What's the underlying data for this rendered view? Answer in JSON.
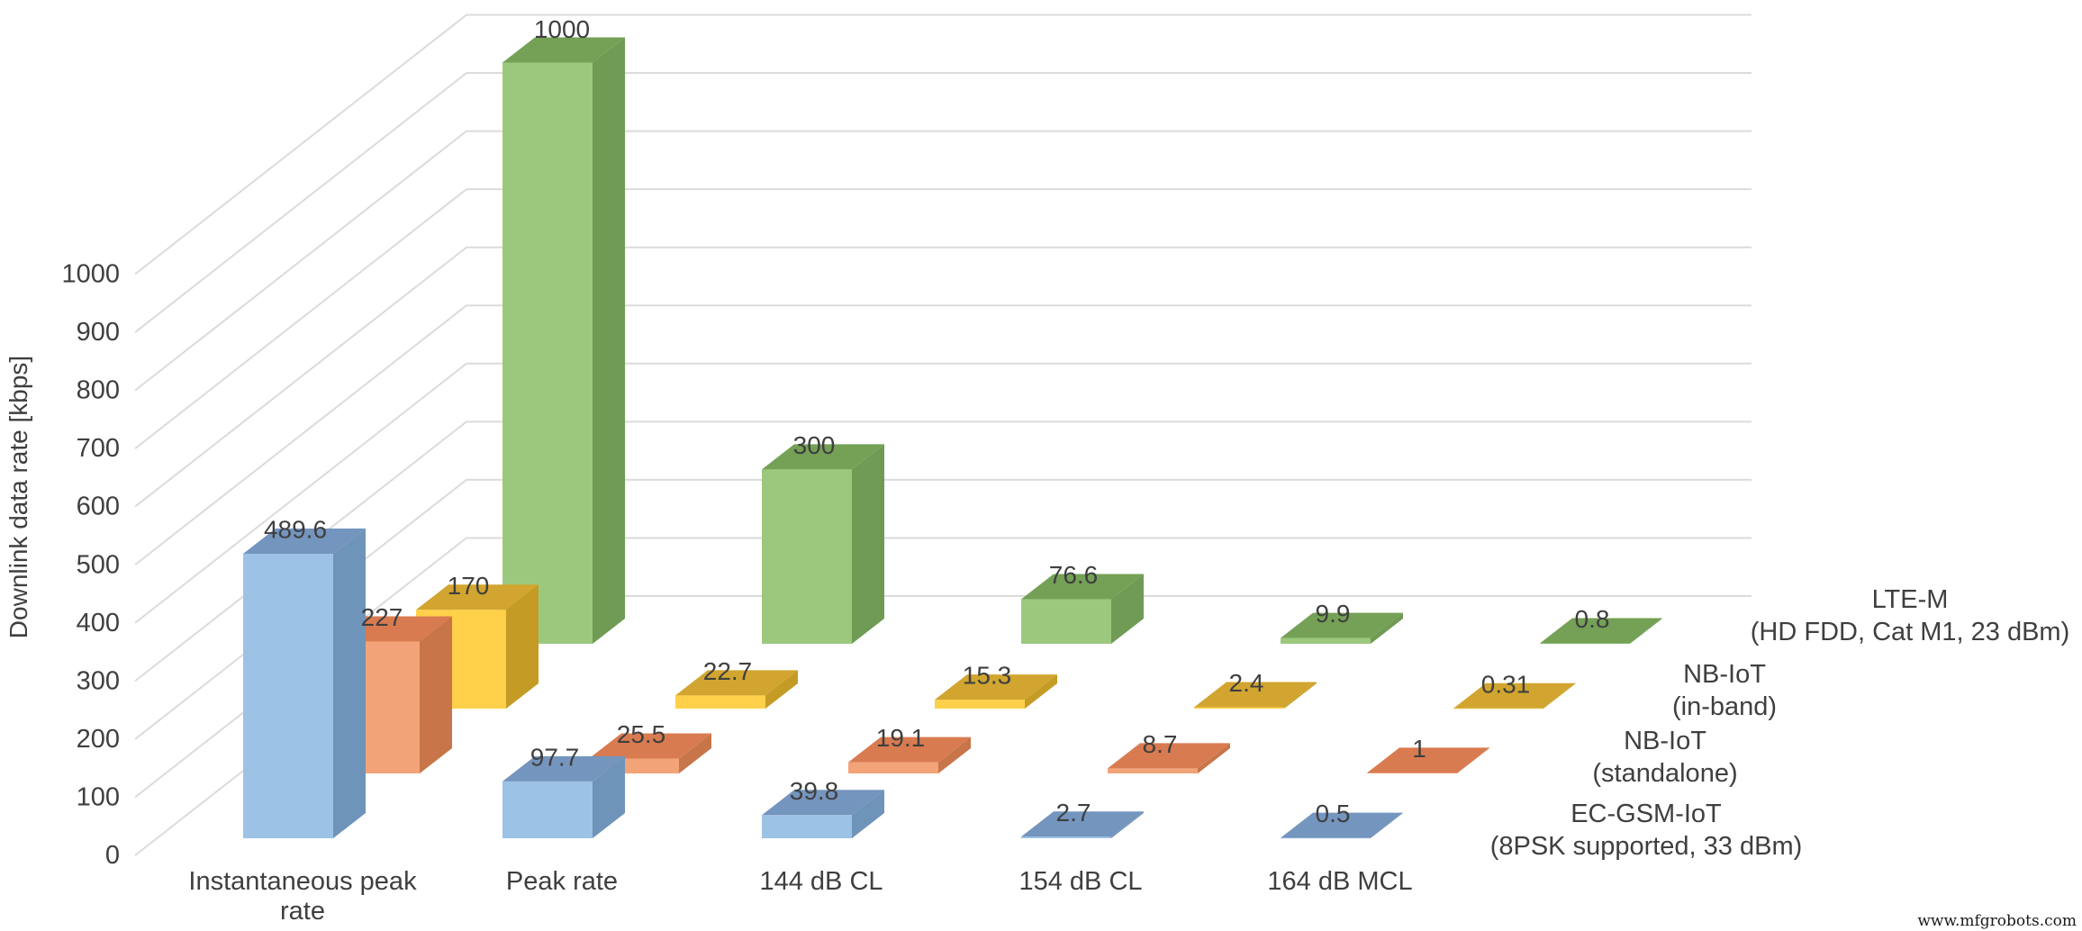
{
  "watermark": "www.mfgrobots.com",
  "chart_data": {
    "type": "bar",
    "projection": "3d-column",
    "title": "",
    "xlabel": "",
    "ylabel": "Downlink data rate [kbps]",
    "ylim": [
      0,
      1000
    ],
    "ytick_step": 100,
    "grid": true,
    "legend_position": "right-depth-axis",
    "categories": [
      "Instantaneous peak rate",
      "Peak rate",
      "144 dB CL",
      "154 dB CL",
      "164 dB MCL"
    ],
    "category_label_lines": [
      [
        "Instantaneous peak",
        "rate"
      ],
      [
        "Peak rate"
      ],
      [
        "144 dB CL"
      ],
      [
        "154 dB CL"
      ],
      [
        "164 dB MCL"
      ]
    ],
    "series": [
      {
        "name": "EC-GSM-IoT (8PSK supported, 33 dBm)",
        "label_lines": [
          "EC-GSM-IoT",
          "(8PSK supported, 33 dBm)"
        ],
        "color_front": "#9CC3E6",
        "color_top": "#7495BE",
        "color_side": "#6E94BA",
        "values": [
          489.6,
          97.7,
          39.8,
          2.7,
          0.5
        ]
      },
      {
        "name": "NB-IoT (standalone)",
        "label_lines": [
          "NB-IoT",
          "(standalone)"
        ],
        "color_front": "#F2A478",
        "color_top": "#D97B50",
        "color_side": "#C77549",
        "values": [
          227,
          25.5,
          19.1,
          8.7,
          1
        ]
      },
      {
        "name": "NB-IoT (in-band)",
        "label_lines": [
          "NB-IoT",
          "(in-band)"
        ],
        "color_front": "#FFD04A",
        "color_top": "#D1A52F",
        "color_side": "#C49B25",
        "values": [
          170,
          22.7,
          15.3,
          2.4,
          0.31
        ]
      },
      {
        "name": "LTE-M (HD FDD, Cat M1, 23 dBm)",
        "label_lines": [
          "LTE-M",
          "(HD FDD, Cat M1, 23 dBm)"
        ],
        "color_front": "#9CC87E",
        "color_top": "#74A156",
        "color_side": "#6F9B54",
        "values": [
          1000,
          300,
          76.6,
          9.9,
          0.8
        ]
      }
    ]
  }
}
